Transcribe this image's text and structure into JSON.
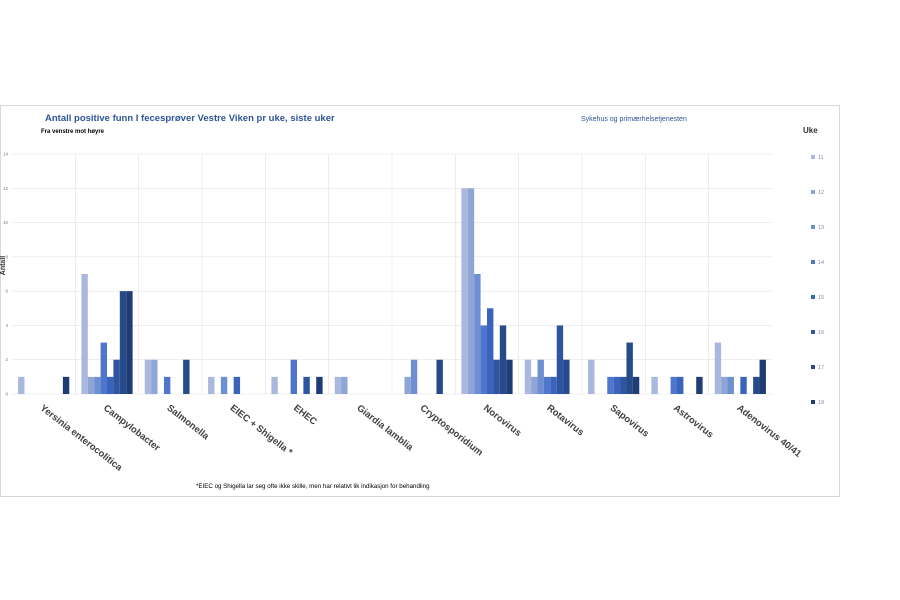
{
  "chart_data": {
    "type": "bar",
    "title": "Antall positive funn I fecesprøver Vestre Viken pr uke, siste uker",
    "subtitle": "Fra venstre mot høyre",
    "scope_label": "Sykehus og primærhelsetjenesten",
    "ylabel": "Antall",
    "xlabel": "",
    "ylim": [
      0,
      14
    ],
    "yticks": [
      "0",
      "2",
      "4",
      "6",
      "8",
      "10",
      "12",
      "14"
    ],
    "grid": true,
    "legend_title": "Uke",
    "legend_position": "right",
    "footnote": "*EIEC og Shigella lar seg ofte ikke skille, men har relativt lik indikasjon for behandling",
    "categories": [
      "Yersinia enterocolitica",
      "Campylobacter",
      "Salmonella",
      "EIEC + Shigella *",
      "EHEC",
      "Giardia lamblia",
      "Cryptosporidium",
      "Norovirus",
      "Rotavirus",
      "Sapovirus",
      "Astrovirus",
      "Adenovirus 40/41"
    ],
    "series": [
      {
        "name": "11",
        "color": "#a9b8dc",
        "values": [
          1,
          7,
          2,
          1,
          1,
          1,
          0,
          12,
          2,
          2,
          1,
          3
        ]
      },
      {
        "name": "12",
        "color": "#8fa5d6",
        "values": [
          0,
          1,
          2,
          0,
          0,
          1,
          1,
          12,
          1,
          0,
          0,
          1
        ]
      },
      {
        "name": "13",
        "color": "#6e8fd2",
        "values": [
          0,
          1,
          0,
          1,
          0,
          0,
          2,
          7,
          2,
          0,
          0,
          1
        ]
      },
      {
        "name": "14",
        "color": "#4f76cc",
        "values": [
          0,
          3,
          1,
          0,
          2,
          0,
          0,
          4,
          1,
          1,
          1,
          0
        ]
      },
      {
        "name": "15",
        "color": "#3a64bb",
        "values": [
          0,
          1,
          0,
          1,
          0,
          0,
          0,
          5,
          1,
          1,
          1,
          1
        ]
      },
      {
        "name": "16",
        "color": "#2e559f",
        "values": [
          0,
          2,
          0,
          0,
          1,
          0,
          0,
          2,
          4,
          1,
          0,
          0
        ]
      },
      {
        "name": "17",
        "color": "#264a8a",
        "values": [
          0,
          6,
          2,
          0,
          0,
          0,
          2,
          4,
          2,
          3,
          0,
          1
        ]
      },
      {
        "name": "18",
        "color": "#1f3d74",
        "values": [
          1,
          6,
          0,
          0,
          1,
          0,
          0,
          2,
          0,
          1,
          1,
          2
        ]
      }
    ]
  }
}
